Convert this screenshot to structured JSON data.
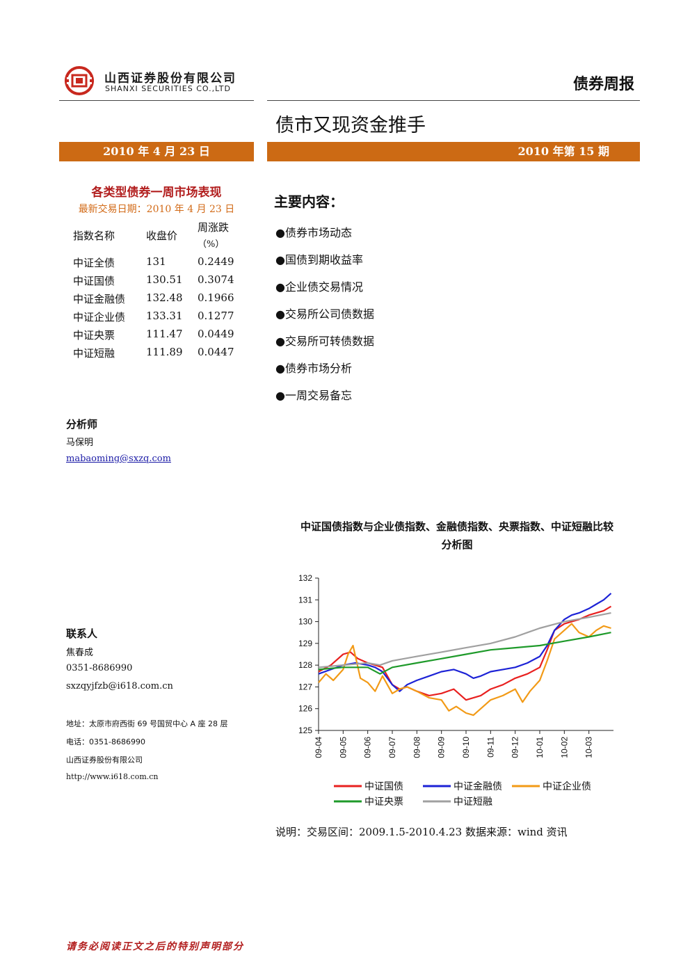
{
  "header": {
    "company_cn": "山西证券股份有限公司",
    "company_en": "SHANXI SECURITIES CO.,LTD",
    "report_type": "债券周报",
    "title": "债市又现资金推手",
    "date": "2010 年 4 月 23 日",
    "issue": "2010 年第 15 期"
  },
  "market": {
    "title": "各类型债券一周市场表现",
    "latest_date": "最新交易日期：2010 年 4 月 23 日",
    "col_name": "指数名称",
    "col_close": "收盘价",
    "col_change_1": "周涨跌",
    "col_change_2": "（%）",
    "rows": [
      {
        "name": "中证全债",
        "close": "131",
        "change": "0.2449"
      },
      {
        "name": "中证国债",
        "close": "130.51",
        "change": "0.3074"
      },
      {
        "name": "中证金融债",
        "close": "132.48",
        "change": "0.1966"
      },
      {
        "name": "中证企业债",
        "close": "133.31",
        "change": "0.1277"
      },
      {
        "name": "中证央票",
        "close": "111.47",
        "change": "0.0449"
      },
      {
        "name": "中证短融",
        "close": "111.89",
        "change": "0.0447"
      }
    ]
  },
  "contents": {
    "title": "主要内容：",
    "items": [
      "●债券市场动态",
      "●国债到期收益率",
      "●企业债交易情况",
      "●交易所公司债数据",
      "●交易所可转债数据",
      "●债券市场分析",
      "●一周交易备忘"
    ]
  },
  "analyst": {
    "label": "分析师",
    "name": "马保明",
    "email": "mabaoming@sxzq.com"
  },
  "contact": {
    "label": "联系人",
    "name": "焦春成",
    "phone": "0351-8686990",
    "email": "sxzqyjfzb@i618.com.cn",
    "address": "地址：太原市府西街 69 号国贸中心 A 座 28 层",
    "tel": "电话：0351-8686990",
    "company": "山西证券股份有限公司",
    "website": "http://www.i618.com.cn"
  },
  "chart_data": {
    "type": "line",
    "title": "中证国债指数与企业债指数、金融债指数、央票指数、中证短融比较分析图",
    "title_line1": "中证国债指数与企业债指数、金融债指数、央票指数、中证短融比较",
    "title_line2": "分析图",
    "ylim": [
      125,
      132
    ],
    "yticks": [
      "125",
      "126",
      "127",
      "128",
      "129",
      "130",
      "131",
      "132"
    ],
    "x_labels": [
      "09-04",
      "09-05",
      "09-06",
      "09-07",
      "09-08",
      "09-09",
      "09-10",
      "09-11",
      "09-12",
      "10-01",
      "10-02",
      "10-03"
    ],
    "x_range": [
      0,
      12
    ],
    "grid": false,
    "legend_position": "bottom",
    "series": [
      {
        "name": "中证国债",
        "color": "#e8201f",
        "x": [
          0,
          0.5,
          1,
          1.3,
          1.6,
          2,
          2.3,
          2.6,
          3,
          3.3,
          3.6,
          4,
          4.5,
          5,
          5.5,
          6,
          6.3,
          6.6,
          7,
          7.5,
          8,
          8.5,
          9,
          9.3,
          9.6,
          10,
          10.3,
          10.6,
          11,
          11.3,
          11.6,
          11.9
        ],
        "values": [
          127.7,
          128,
          128.5,
          128.6,
          128.3,
          128.1,
          128.0,
          127.9,
          127.1,
          126.9,
          127.0,
          126.8,
          126.6,
          126.7,
          126.9,
          126.4,
          126.5,
          126.6,
          126.9,
          127.1,
          127.4,
          127.6,
          127.9,
          128.7,
          129.6,
          129.9,
          130.0,
          130.1,
          130.3,
          130.4,
          130.5,
          130.7
        ]
      },
      {
        "name": "中证金融债",
        "color": "#1c22d6",
        "x": [
          0,
          0.5,
          1,
          1.5,
          2,
          2.3,
          2.6,
          3,
          3.3,
          3.6,
          4,
          4.5,
          5,
          5.5,
          6,
          6.3,
          6.6,
          7,
          7.5,
          8,
          8.5,
          9,
          9.3,
          9.6,
          10,
          10.3,
          10.6,
          11,
          11.3,
          11.6,
          11.9
        ],
        "values": [
          127.6,
          127.8,
          128.0,
          128.1,
          128.0,
          127.9,
          127.7,
          127.1,
          126.8,
          127.1,
          127.3,
          127.5,
          127.7,
          127.8,
          127.6,
          127.4,
          127.5,
          127.7,
          127.8,
          127.9,
          128.1,
          128.4,
          128.9,
          129.6,
          130.1,
          130.3,
          130.4,
          130.6,
          130.8,
          131.0,
          131.3
        ]
      },
      {
        "name": "中证企业债",
        "color": "#f29a16",
        "x": [
          0,
          0.3,
          0.6,
          1,
          1.2,
          1.4,
          1.7,
          2,
          2.3,
          2.6,
          3,
          3.3,
          3.6,
          4,
          4.5,
          5,
          5.3,
          5.6,
          6,
          6.3,
          6.6,
          7,
          7.5,
          8,
          8.3,
          8.6,
          9,
          9.3,
          9.6,
          10,
          10.3,
          10.6,
          11,
          11.3,
          11.6,
          11.9
        ],
        "values": [
          127.2,
          127.6,
          127.3,
          127.8,
          128.5,
          128.9,
          127.4,
          127.2,
          126.8,
          127.5,
          126.7,
          126.9,
          127.0,
          126.8,
          126.5,
          126.4,
          125.9,
          126.1,
          125.8,
          125.7,
          126.0,
          126.4,
          126.6,
          126.9,
          126.3,
          126.8,
          127.3,
          128.2,
          129.2,
          129.6,
          129.9,
          129.5,
          129.3,
          129.6,
          129.8,
          129.7
        ]
      },
      {
        "name": "中证央票",
        "color": "#1e9a2a",
        "x": [
          0,
          1,
          2,
          2.5,
          3,
          4,
          5,
          6,
          7,
          8,
          9,
          10,
          11,
          11.9
        ],
        "values": [
          127.8,
          127.9,
          127.9,
          127.6,
          127.9,
          128.1,
          128.3,
          128.5,
          128.7,
          128.8,
          128.9,
          129.1,
          129.3,
          129.5
        ]
      },
      {
        "name": "中证短融",
        "color": "#a0a0a0",
        "x": [
          0,
          1,
          2,
          2.5,
          3,
          4,
          5,
          6,
          7,
          8,
          9,
          10,
          11,
          11.9
        ],
        "values": [
          127.9,
          128.0,
          128.1,
          128.0,
          128.2,
          128.4,
          128.6,
          128.8,
          129.0,
          129.3,
          129.7,
          130.0,
          130.2,
          130.4
        ]
      }
    ]
  },
  "chart_note": "说明：交易区间：2009.1.5-2010.4.23 数据来源：wind 资讯",
  "footer_note": "请务必阅读正文之后的特别声明部分",
  "colors": {
    "accent_orange": "#cc6a14",
    "title_red": "#b21e1e",
    "date_orange": "#d26a17",
    "logo_red": "#c8281e"
  }
}
